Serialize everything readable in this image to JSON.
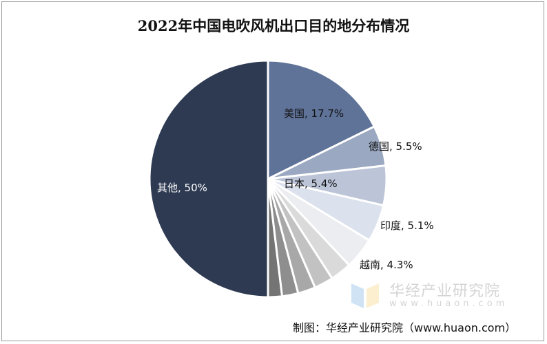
{
  "chart_data": {
    "type": "pie",
    "title": "2022年中国电吹风机出口目的地分布情况",
    "start_angle": "12 o'clock",
    "direction": "clockwise",
    "slices": [
      {
        "label": "美国",
        "value": 17.7,
        "display": "美国, 17.7%",
        "color": "#5f7399"
      },
      {
        "label": "德国",
        "value": 5.5,
        "display": "德国, 5.5%",
        "color": "#9ba8c1"
      },
      {
        "label": "日本",
        "value": 5.4,
        "display": "日本, 5.4%",
        "color": "#bcc5d8"
      },
      {
        "label": "印度",
        "value": 5.1,
        "display": "印度, 5.1%",
        "color": "#dbe2ee"
      },
      {
        "label": "越南",
        "value": 4.3,
        "display": "越南, 4.3%",
        "color": "#ecedf0"
      },
      {
        "label": "",
        "value": 2.9,
        "display": "",
        "color": "#dadada"
      },
      {
        "label": "",
        "value": 2.6,
        "display": "",
        "color": "#c2c2c2"
      },
      {
        "label": "",
        "value": 2.4,
        "display": "",
        "color": "#a8a8a8"
      },
      {
        "label": "",
        "value": 2.2,
        "display": "",
        "color": "#8e8e8e"
      },
      {
        "label": "",
        "value": 1.9,
        "display": "",
        "color": "#747474"
      },
      {
        "label": "其他",
        "value": 50,
        "display": "其他, 50%",
        "color": "#2e3a52"
      }
    ]
  },
  "watermark": {
    "name": "华经产业研究院",
    "url": "www.huaon.com"
  },
  "source": "制图：华经产业研究院（www.huaon.com）"
}
